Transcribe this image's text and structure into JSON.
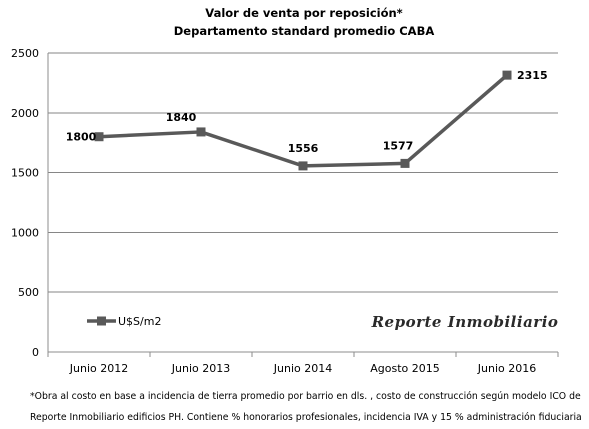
{
  "chart_data": {
    "type": "line",
    "title": "Valor de venta por reposición*",
    "subtitle": "Departamento standard promedio CABA",
    "categories": [
      "Junio 2012",
      "Junio 2013",
      "Junio 2014",
      "Agosto 2015",
      "Junio 2016"
    ],
    "series": [
      {
        "name": "U$S/m2",
        "values": [
          1800,
          1840,
          1556,
          1577,
          2315
        ],
        "color": "#595959"
      }
    ],
    "ylim": [
      0,
      2500
    ],
    "yticks": [
      0,
      500,
      1000,
      1500,
      2000,
      2500
    ],
    "grid": true,
    "legend_position": "bottom-left",
    "data_labels": true
  },
  "brand": "Reporte Inmobiliario",
  "footnote": {
    "line1": "*Obra al costo en base a incidencia de tierra promedio por barrio en dls. , costo de construcción según modelo ICO de",
    "line2": "Reporte Inmobiliario edificios PH. Contiene % honorarios profesionales, incidencia IVA y 15 % administración fiduciaria"
  }
}
